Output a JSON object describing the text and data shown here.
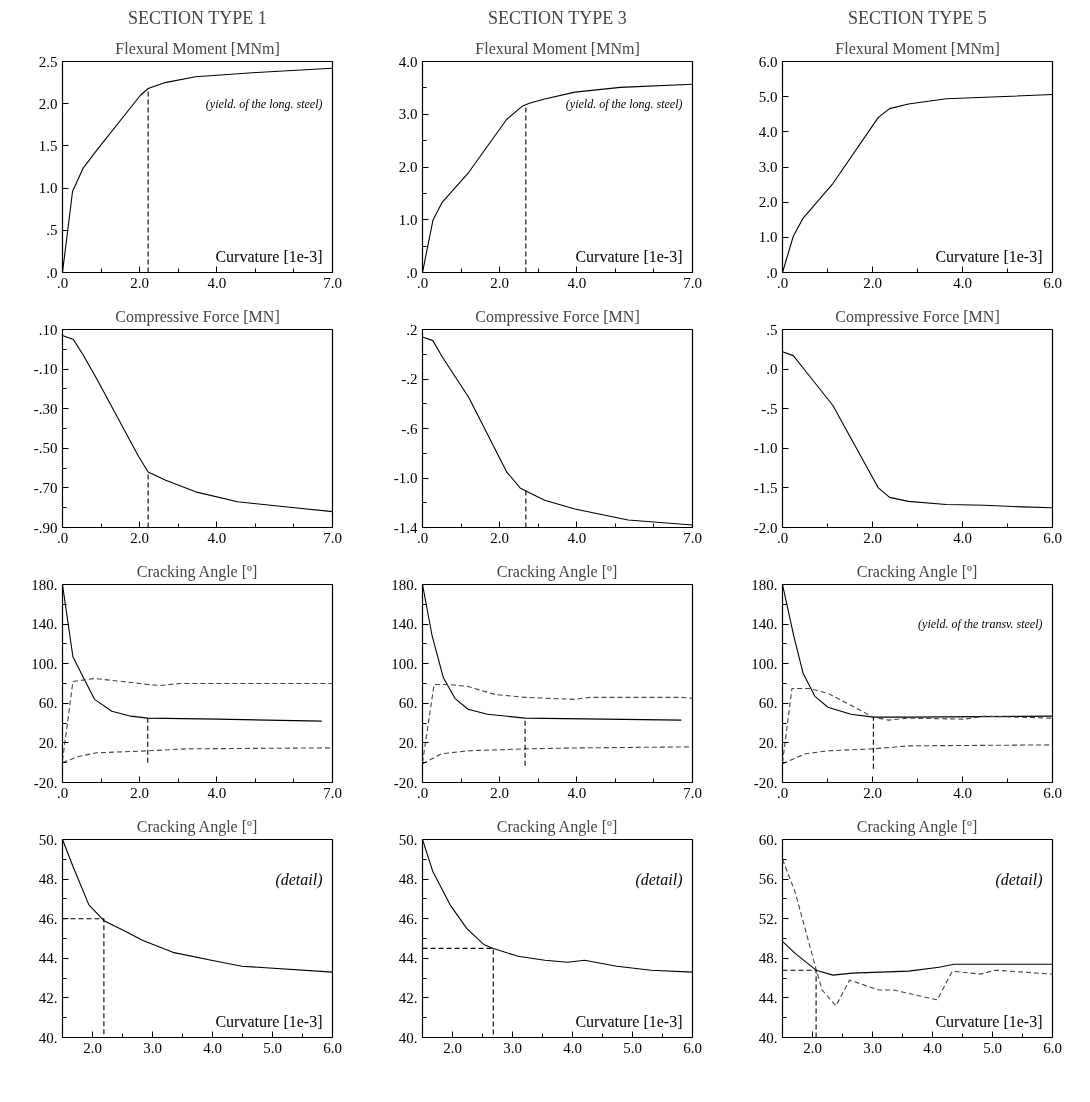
{
  "chart_data": [
    {
      "type": "line",
      "title": "SECTION TYPE 1",
      "subtitle": "Flexural Moment [MNm]",
      "xlabel": "Curvature [1e-3]",
      "annotations": [
        "(yield. of the long. steel)"
      ],
      "xlim": [
        0,
        7
      ],
      "ylim": [
        0,
        2.5
      ],
      "xticks": [
        {
          "value": 0,
          "label": ".0"
        },
        {
          "value": 1,
          "label": null
        },
        {
          "value": 2,
          "label": "2.0"
        },
        {
          "value": 3,
          "label": null
        },
        {
          "value": 4,
          "label": "4.0"
        },
        {
          "value": 5,
          "label": null
        },
        {
          "value": 6,
          "label": null
        },
        {
          "value": 7,
          "label": "7.0"
        }
      ],
      "yticks": [
        {
          "value": 0,
          "label": ".0"
        },
        {
          "value": 0.5,
          "label": ".5"
        },
        {
          "value": 1,
          "label": "1.0"
        },
        {
          "value": 1.5,
          "label": "1.5"
        },
        {
          "value": 2,
          "label": "2.0"
        },
        {
          "value": 2.5,
          "label": "2.5"
        }
      ],
      "series": [
        {
          "color": "#000000",
          "line_style": "solid",
          "x": [
            0,
            0.26,
            0.54,
            0.89,
            2.02,
            2.22,
            2.66,
            3.45,
            5.03,
            7.0
          ],
          "values": [
            0,
            0.96,
            1.24,
            1.45,
            2.1,
            2.18,
            2.25,
            2.32,
            2.37,
            2.42
          ]
        },
        {
          "color": "#000000",
          "line_style": "dashed",
          "x": [
            2.22,
            2.22
          ],
          "values": [
            0,
            2.18
          ]
        }
      ]
    },
    {
      "type": "line",
      "title": "SECTION TYPE 3",
      "subtitle": "Flexural Moment [MNm]",
      "xlabel": "Curvature [1e-3]",
      "annotations": [
        "(yield. of the long. steel)"
      ],
      "xlim": [
        0,
        7
      ],
      "ylim": [
        0,
        4
      ],
      "xticks": [
        {
          "value": 0,
          "label": ".0"
        },
        {
          "value": 1,
          "label": null
        },
        {
          "value": 2,
          "label": "2.0"
        },
        {
          "value": 3,
          "label": null
        },
        {
          "value": 4,
          "label": "4.0"
        },
        {
          "value": 5,
          "label": null
        },
        {
          "value": 6,
          "label": null
        },
        {
          "value": 7,
          "label": "7.0"
        }
      ],
      "yticks": [
        {
          "value": 0,
          "label": ".0"
        },
        {
          "value": 0.5,
          "label": null
        },
        {
          "value": 1,
          "label": "1.0"
        },
        {
          "value": 1.5,
          "label": null
        },
        {
          "value": 2,
          "label": "2.0"
        },
        {
          "value": 2.5,
          "label": null
        },
        {
          "value": 3,
          "label": "3.0"
        },
        {
          "value": 3.5,
          "label": null
        },
        {
          "value": 4,
          "label": "4.0"
        }
      ],
      "series": [
        {
          "color": "#000000",
          "line_style": "solid",
          "x": [
            0,
            0.27,
            0.51,
            1.2,
            2.18,
            2.58,
            2.77,
            3.17,
            3.95,
            5.13,
            7.0
          ],
          "values": [
            0,
            0.99,
            1.33,
            1.9,
            2.9,
            3.15,
            3.21,
            3.29,
            3.42,
            3.51,
            3.57
          ]
        },
        {
          "color": "#000000",
          "line_style": "dashed",
          "x": [
            2.68,
            2.68
          ],
          "values": [
            0,
            3.18
          ]
        }
      ]
    },
    {
      "type": "line",
      "title": "SECTION TYPE 5",
      "subtitle": "Flexural Moment [MNm]",
      "xlabel": "Curvature [1e-3]",
      "xlim": [
        0,
        6
      ],
      "ylim": [
        0,
        6
      ],
      "xticks": [
        {
          "value": 0,
          "label": ".0"
        },
        {
          "value": 1,
          "label": null
        },
        {
          "value": 2,
          "label": "2.0"
        },
        {
          "value": 3,
          "label": null
        },
        {
          "value": 4,
          "label": "4.0"
        },
        {
          "value": 5,
          "label": null
        },
        {
          "value": 6,
          "label": "6.0"
        }
      ],
      "yticks": [
        {
          "value": 0,
          "label": ".0"
        },
        {
          "value": 1,
          "label": "1.0"
        },
        {
          "value": 2,
          "label": "2.0"
        },
        {
          "value": 3,
          "label": "3.0"
        },
        {
          "value": 4,
          "label": "4.0"
        },
        {
          "value": 5,
          "label": "5.0"
        },
        {
          "value": 6,
          "label": "6.0"
        }
      ],
      "series": [
        {
          "color": "#000000",
          "line_style": "solid",
          "x": [
            0,
            0.24,
            0.45,
            1.12,
            2.13,
            2.38,
            2.8,
            3.64,
            6.0
          ],
          "values": [
            0,
            1.03,
            1.53,
            2.53,
            4.41,
            4.66,
            4.79,
            4.94,
            5.06
          ]
        }
      ]
    },
    {
      "type": "line",
      "title": "Compressive Force [MN]",
      "xlim": [
        0,
        7
      ],
      "ylim": [
        -0.9,
        0.1
      ],
      "xticks": [
        {
          "value": 0,
          "label": ".0"
        },
        {
          "value": 1,
          "label": null
        },
        {
          "value": 2,
          "label": "2.0"
        },
        {
          "value": 3,
          "label": null
        },
        {
          "value": 4,
          "label": "4.0"
        },
        {
          "value": 5,
          "label": null
        },
        {
          "value": 6,
          "label": null
        },
        {
          "value": 7,
          "label": "7.0"
        }
      ],
      "yticks": [
        {
          "value": 0.1,
          "label": ".10"
        },
        {
          "value": 0,
          "label": null
        },
        {
          "value": -0.1,
          "label": "-.10"
        },
        {
          "value": -0.2,
          "label": null
        },
        {
          "value": -0.3,
          "label": "-.30"
        },
        {
          "value": -0.4,
          "label": null
        },
        {
          "value": -0.5,
          "label": "-.50"
        },
        {
          "value": -0.6,
          "label": null
        },
        {
          "value": -0.7,
          "label": "-.70"
        },
        {
          "value": -0.8,
          "label": null
        },
        {
          "value": -0.9,
          "label": "-.90"
        }
      ],
      "series": [
        {
          "color": "#000000",
          "line_style": "solid",
          "x": [
            0,
            0.28,
            0.54,
            0.89,
            1.97,
            2.22,
            2.66,
            3.45,
            4.54,
            5.52,
            7.0
          ],
          "values": [
            0.07,
            0.05,
            -0.03,
            -0.15,
            -0.54,
            -0.62,
            -0.66,
            -0.72,
            -0.77,
            -0.79,
            -0.82
          ]
        },
        {
          "color": "#000000",
          "line_style": "dashed",
          "x": [
            2.22,
            2.22
          ],
          "values": [
            -0.9,
            -0.62
          ]
        }
      ]
    },
    {
      "type": "line",
      "title": "Compressive Force [MN]",
      "xlim": [
        0,
        7
      ],
      "ylim": [
        -1.4,
        0.2
      ],
      "xticks": [
        {
          "value": 0,
          "label": ".0"
        },
        {
          "value": 1,
          "label": null
        },
        {
          "value": 2,
          "label": "2.0"
        },
        {
          "value": 3,
          "label": null
        },
        {
          "value": 4,
          "label": "4.0"
        },
        {
          "value": 5,
          "label": null
        },
        {
          "value": 6,
          "label": null
        },
        {
          "value": 7,
          "label": "7.0"
        }
      ],
      "yticks": [
        {
          "value": 0.2,
          "label": ".2"
        },
        {
          "value": 0,
          "label": null
        },
        {
          "value": -0.2,
          "label": "-.2"
        },
        {
          "value": -0.4,
          "label": null
        },
        {
          "value": -0.6,
          "label": "-.6"
        },
        {
          "value": -0.8,
          "label": null
        },
        {
          "value": -1.0,
          "label": "-1.0"
        },
        {
          "value": -1.2,
          "label": null
        },
        {
          "value": -1.4,
          "label": "-1.4"
        }
      ],
      "series": [
        {
          "color": "#000000",
          "line_style": "solid",
          "x": [
            0,
            0.27,
            0.51,
            1.2,
            2.18,
            2.53,
            2.77,
            3.17,
            3.95,
            5.33,
            7.0
          ],
          "values": [
            0.14,
            0.11,
            -0.02,
            -0.35,
            -0.95,
            -1.08,
            -1.12,
            -1.18,
            -1.25,
            -1.34,
            -1.38
          ]
        },
        {
          "color": "#000000",
          "line_style": "dashed",
          "x": [
            2.68,
            2.68
          ],
          "values": [
            -1.4,
            -1.1
          ]
        }
      ]
    },
    {
      "type": "line",
      "title": "Compressive Force [MN]",
      "xlim": [
        0,
        6
      ],
      "ylim": [
        -2.0,
        0.5
      ],
      "xticks": [
        {
          "value": 0,
          "label": ".0"
        },
        {
          "value": 1,
          "label": null
        },
        {
          "value": 2,
          "label": "2.0"
        },
        {
          "value": 3,
          "label": null
        },
        {
          "value": 4,
          "label": "4.0"
        },
        {
          "value": 5,
          "label": null
        },
        {
          "value": 6,
          "label": "6.0"
        }
      ],
      "yticks": [
        {
          "value": 0.5,
          "label": ".5"
        },
        {
          "value": 0,
          "label": ".0"
        },
        {
          "value": -0.5,
          "label": "-.5"
        },
        {
          "value": -1.0,
          "label": "-1.0"
        },
        {
          "value": -1.5,
          "label": "-1.5"
        },
        {
          "value": -2.0,
          "label": "-2.0"
        }
      ],
      "series": [
        {
          "color": "#000000",
          "line_style": "solid",
          "x": [
            0,
            0.24,
            0.45,
            1.12,
            2.13,
            2.38,
            2.8,
            3.64,
            4.49,
            5.33,
            6.0
          ],
          "values": [
            0.22,
            0.17,
            0.02,
            -0.46,
            -1.5,
            -1.62,
            -1.67,
            -1.71,
            -1.72,
            -1.74,
            -1.75
          ]
        }
      ]
    },
    {
      "type": "line",
      "title": "Cracking Angle [º]",
      "xlim": [
        0,
        7
      ],
      "ylim": [
        -20,
        180
      ],
      "xticks": [
        {
          "value": 0,
          "label": ".0"
        },
        {
          "value": 1,
          "label": null
        },
        {
          "value": 2,
          "label": "2.0"
        },
        {
          "value": 3,
          "label": null
        },
        {
          "value": 4,
          "label": "4.0"
        },
        {
          "value": 5,
          "label": null
        },
        {
          "value": 6,
          "label": null
        },
        {
          "value": 7,
          "label": "7.0"
        }
      ],
      "yticks": [
        {
          "value": 180,
          "label": "180."
        },
        {
          "value": 160,
          "label": null
        },
        {
          "value": 140,
          "label": "140."
        },
        {
          "value": 120,
          "label": null
        },
        {
          "value": 100,
          "label": "100."
        },
        {
          "value": 80,
          "label": null
        },
        {
          "value": 60,
          "label": "60."
        },
        {
          "value": 40,
          "label": null
        },
        {
          "value": 20,
          "label": "20."
        },
        {
          "value": 0,
          "label": null
        },
        {
          "value": -20,
          "label": "-20."
        }
      ],
      "series": [
        {
          "color": "#000000",
          "line_style": "solid",
          "x": [
            0,
            0.27,
            0.54,
            0.83,
            1.28,
            1.77,
            2.21,
            4.02,
            6.72
          ],
          "values": [
            180,
            107,
            86,
            64,
            52,
            47,
            45,
            44,
            42
          ]
        },
        {
          "color": "#444444",
          "line_style": "dashed",
          "x": [
            0,
            0.27,
            0.83,
            1.57,
            2.21,
            2.55,
            3.04,
            7.0
          ],
          "values": [
            2,
            82,
            85,
            82,
            79,
            78,
            80,
            80
          ]
        },
        {
          "color": "#444444",
          "line_style": "dashed",
          "x": [
            0,
            0.39,
            0.88,
            1.57,
            2.21,
            3.24,
            7.0
          ],
          "values": [
            0,
            6,
            10,
            11,
            12,
            14,
            15
          ]
        },
        {
          "color": "#000000",
          "line_style": "dashed",
          "x": [
            2.21,
            2.21
          ],
          "values": [
            0,
            45
          ]
        }
      ]
    },
    {
      "type": "line",
      "title": "Cracking Angle [º]",
      "xlim": [
        0,
        7
      ],
      "ylim": [
        -20,
        180
      ],
      "xticks": [
        {
          "value": 0,
          "label": ".0"
        },
        {
          "value": 1,
          "label": null
        },
        {
          "value": 2,
          "label": "2.0"
        },
        {
          "value": 3,
          "label": null
        },
        {
          "value": 4,
          "label": "4.0"
        },
        {
          "value": 5,
          "label": null
        },
        {
          "value": 6,
          "label": null
        },
        {
          "value": 7,
          "label": "7.0"
        }
      ],
      "yticks": [
        {
          "value": 180,
          "label": "180."
        },
        {
          "value": 160,
          "label": null
        },
        {
          "value": 140,
          "label": "140."
        },
        {
          "value": 120,
          "label": null
        },
        {
          "value": 100,
          "label": "100."
        },
        {
          "value": 80,
          "label": null
        },
        {
          "value": 60,
          "label": "60."
        },
        {
          "value": 40,
          "label": null
        },
        {
          "value": 20,
          "label": "20."
        },
        {
          "value": 0,
          "label": null
        },
        {
          "value": -20,
          "label": "-20."
        }
      ],
      "series": [
        {
          "color": "#000000",
          "line_style": "solid",
          "x": [
            0,
            0.25,
            0.54,
            0.84,
            1.18,
            1.68,
            2.66,
            6.71
          ],
          "values": [
            180,
            128,
            86,
            65,
            54,
            49,
            45,
            43
          ]
        },
        {
          "color": "#444444",
          "line_style": "dashed",
          "x": [
            0,
            0.3,
            0.69,
            1.18,
            1.87,
            2.66,
            3.94,
            4.34,
            6.71,
            7.0
          ],
          "values": [
            0,
            79,
            79,
            77,
            69,
            66,
            64,
            66,
            66,
            65
          ]
        },
        {
          "color": "#444444",
          "line_style": "dashed",
          "x": [
            0,
            0.49,
            1.18,
            1.97,
            2.66,
            4.14,
            7.0
          ],
          "values": [
            -1,
            9,
            12,
            13,
            14,
            15,
            16
          ]
        },
        {
          "color": "#000000",
          "line_style": "dashed",
          "x": [
            2.66,
            2.66
          ],
          "values": [
            -3,
            45
          ]
        }
      ]
    },
    {
      "type": "line",
      "title": "Cracking Angle [º]",
      "annotations": [
        "(yield. of the transv. steel)"
      ],
      "xlim": [
        0,
        6
      ],
      "ylim": [
        -20,
        180
      ],
      "xticks": [
        {
          "value": 0,
          "label": ".0"
        },
        {
          "value": 1,
          "label": null
        },
        {
          "value": 2,
          "label": "2.0"
        },
        {
          "value": 3,
          "label": null
        },
        {
          "value": 4,
          "label": "4.0"
        },
        {
          "value": 5,
          "label": null
        },
        {
          "value": 6,
          "label": "6.0"
        }
      ],
      "yticks": [
        {
          "value": 180,
          "label": "180."
        },
        {
          "value": 160,
          "label": null
        },
        {
          "value": 140,
          "label": "140."
        },
        {
          "value": 120,
          "label": null
        },
        {
          "value": 100,
          "label": "100."
        },
        {
          "value": 80,
          "label": null
        },
        {
          "value": 60,
          "label": "60."
        },
        {
          "value": 40,
          "label": null
        },
        {
          "value": 20,
          "label": "20."
        },
        {
          "value": 0,
          "label": null
        },
        {
          "value": -20,
          "label": "-20."
        }
      ],
      "series": [
        {
          "color": "#000000",
          "line_style": "solid",
          "x": [
            0,
            0.25,
            0.46,
            0.72,
            1.01,
            1.52,
            2.02,
            2.78,
            6.0
          ],
          "values": [
            180,
            128,
            90,
            67,
            56,
            49,
            46,
            46,
            47
          ]
        },
        {
          "color": "#444444",
          "line_style": "dashed",
          "x": [
            0,
            0.21,
            0.59,
            1.01,
            1.52,
            2.02,
            2.36,
            2.78,
            4.04,
            4.47,
            6.0
          ],
          "values": [
            0,
            75,
            75,
            70,
            58,
            46,
            43,
            45,
            44,
            47,
            45
          ]
        },
        {
          "color": "#444444",
          "line_style": "dashed",
          "x": [
            0,
            0.51,
            1.01,
            2.02,
            2.78,
            6.0
          ],
          "values": [
            -1,
            9,
            12,
            14,
            17,
            18
          ]
        },
        {
          "color": "#000000",
          "line_style": "dashed",
          "x": [
            2.02,
            2.02
          ],
          "values": [
            -6,
            46
          ]
        }
      ]
    },
    {
      "type": "line",
      "title": "Cracking Angle [º]",
      "xlabel": "Curvature [1e-3]",
      "annotations": [
        "(detail)"
      ],
      "xlim": [
        1.5,
        6
      ],
      "ylim": [
        40,
        50
      ],
      "xticks": [
        {
          "value": 2,
          "label": "2.0"
        },
        {
          "value": 2.5,
          "label": null
        },
        {
          "value": 3,
          "label": "3.0"
        },
        {
          "value": 3.5,
          "label": null
        },
        {
          "value": 4,
          "label": "4.0"
        },
        {
          "value": 4.5,
          "label": null
        },
        {
          "value": 5,
          "label": "5.0"
        },
        {
          "value": 5.5,
          "label": null
        },
        {
          "value": 6,
          "label": "6.0"
        }
      ],
      "yticks": [
        {
          "value": 50,
          "label": "50."
        },
        {
          "value": 49,
          "label": null
        },
        {
          "value": 48,
          "label": "48."
        },
        {
          "value": 47,
          "label": null
        },
        {
          "value": 46,
          "label": "46."
        },
        {
          "value": 45,
          "label": null
        },
        {
          "value": 44,
          "label": "44."
        },
        {
          "value": 43,
          "label": null
        },
        {
          "value": 42,
          "label": "42."
        },
        {
          "value": 41,
          "label": null
        },
        {
          "value": 40,
          "label": "40."
        }
      ],
      "series": [
        {
          "color": "#000000",
          "line_style": "solid",
          "x": [
            1.5,
            1.68,
            1.94,
            2.19,
            2.52,
            2.84,
            3.34,
            3.98,
            4.49,
            6.0
          ],
          "values": [
            50,
            48.6,
            46.7,
            45.9,
            45.4,
            44.9,
            44.3,
            43.9,
            43.6,
            43.3
          ]
        },
        {
          "color": "#000000",
          "line_style": "dashed",
          "x": [
            1.5,
            2.19,
            2.19
          ],
          "values": [
            46,
            46,
            40
          ]
        }
      ]
    },
    {
      "type": "line",
      "title": "Cracking Angle [º]",
      "xlabel": "Curvature [1e-3]",
      "annotations": [
        "(detail)"
      ],
      "xlim": [
        1.5,
        6
      ],
      "ylim": [
        40,
        50
      ],
      "xticks": [
        {
          "value": 2,
          "label": "2.0"
        },
        {
          "value": 2.5,
          "label": null
        },
        {
          "value": 3,
          "label": "3.0"
        },
        {
          "value": 3.5,
          "label": null
        },
        {
          "value": 4,
          "label": "4.0"
        },
        {
          "value": 4.5,
          "label": null
        },
        {
          "value": 5,
          "label": "5.0"
        },
        {
          "value": 5.5,
          "label": null
        },
        {
          "value": 6,
          "label": "6.0"
        }
      ],
      "yticks": [
        {
          "value": 50,
          "label": "50."
        },
        {
          "value": 49,
          "label": null
        },
        {
          "value": 48,
          "label": "48."
        },
        {
          "value": 47,
          "label": null
        },
        {
          "value": 46,
          "label": "46."
        },
        {
          "value": 45,
          "label": null
        },
        {
          "value": 44,
          "label": "44."
        },
        {
          "value": 43,
          "label": null
        },
        {
          "value": 42,
          "label": "42."
        },
        {
          "value": 41,
          "label": null
        },
        {
          "value": 40,
          "label": "40."
        }
      ],
      "series": [
        {
          "color": "#000000",
          "line_style": "solid",
          "x": [
            1.5,
            1.67,
            1.96,
            2.24,
            2.52,
            2.68,
            3.09,
            3.54,
            3.92,
            4.2,
            4.74,
            5.31,
            6.0
          ],
          "values": [
            50,
            48.4,
            46.7,
            45.5,
            44.7,
            44.5,
            44.1,
            43.9,
            43.8,
            43.9,
            43.6,
            43.4,
            43.3
          ]
        },
        {
          "color": "#000000",
          "line_style": "dashed",
          "x": [
            1.5,
            2.68,
            2.68
          ],
          "values": [
            44.5,
            44.5,
            40
          ]
        }
      ]
    },
    {
      "type": "line",
      "title": "Cracking Angle [º]",
      "xlabel": "Curvature [1e-3]",
      "annotations": [
        "(detail)"
      ],
      "xlim": [
        1.5,
        6
      ],
      "ylim": [
        40,
        60
      ],
      "xticks": [
        {
          "value": 2,
          "label": "2.0"
        },
        {
          "value": 2.5,
          "label": null
        },
        {
          "value": 3,
          "label": "3.0"
        },
        {
          "value": 3.5,
          "label": null
        },
        {
          "value": 4,
          "label": "4.0"
        },
        {
          "value": 4.5,
          "label": null
        },
        {
          "value": 5,
          "label": "5.0"
        },
        {
          "value": 5.5,
          "label": null
        },
        {
          "value": 6,
          "label": "6.0"
        }
      ],
      "yticks": [
        {
          "value": 60,
          "label": "60."
        },
        {
          "value": 58,
          "label": null
        },
        {
          "value": 56,
          "label": "56."
        },
        {
          "value": 54,
          "label": null
        },
        {
          "value": 52,
          "label": "52."
        },
        {
          "value": 50,
          "label": null
        },
        {
          "value": 48,
          "label": "48."
        },
        {
          "value": 46,
          "label": null
        },
        {
          "value": 44,
          "label": "44."
        },
        {
          "value": 42,
          "label": null
        },
        {
          "value": 40,
          "label": "40."
        }
      ],
      "series": [
        {
          "color": "#000000",
          "line_style": "solid",
          "x": [
            1.5,
            1.71,
            2.06,
            2.34,
            2.66,
            3.6,
            4.11,
            4.36,
            6.0
          ],
          "values": [
            49.7,
            48.5,
            46.8,
            46.3,
            46.5,
            46.7,
            47.1,
            47.4,
            47.4
          ]
        },
        {
          "color": "#444444",
          "line_style": "dashed",
          "x": [
            1.5,
            1.71,
            2.06,
            2.16,
            2.39,
            2.62,
            3.1,
            3.35,
            4.08,
            4.33,
            4.8,
            5.05,
            6.0
          ],
          "values": [
            58,
            54.7,
            46.9,
            44.8,
            43.2,
            45.8,
            44.8,
            44.8,
            43.8,
            46.7,
            46.4,
            46.8,
            46.4
          ]
        },
        {
          "color": "#000000",
          "line_style": "dashed",
          "x": [
            1.5,
            2.06,
            2.06
          ],
          "values": [
            46.8,
            46.8,
            40
          ]
        }
      ]
    }
  ]
}
